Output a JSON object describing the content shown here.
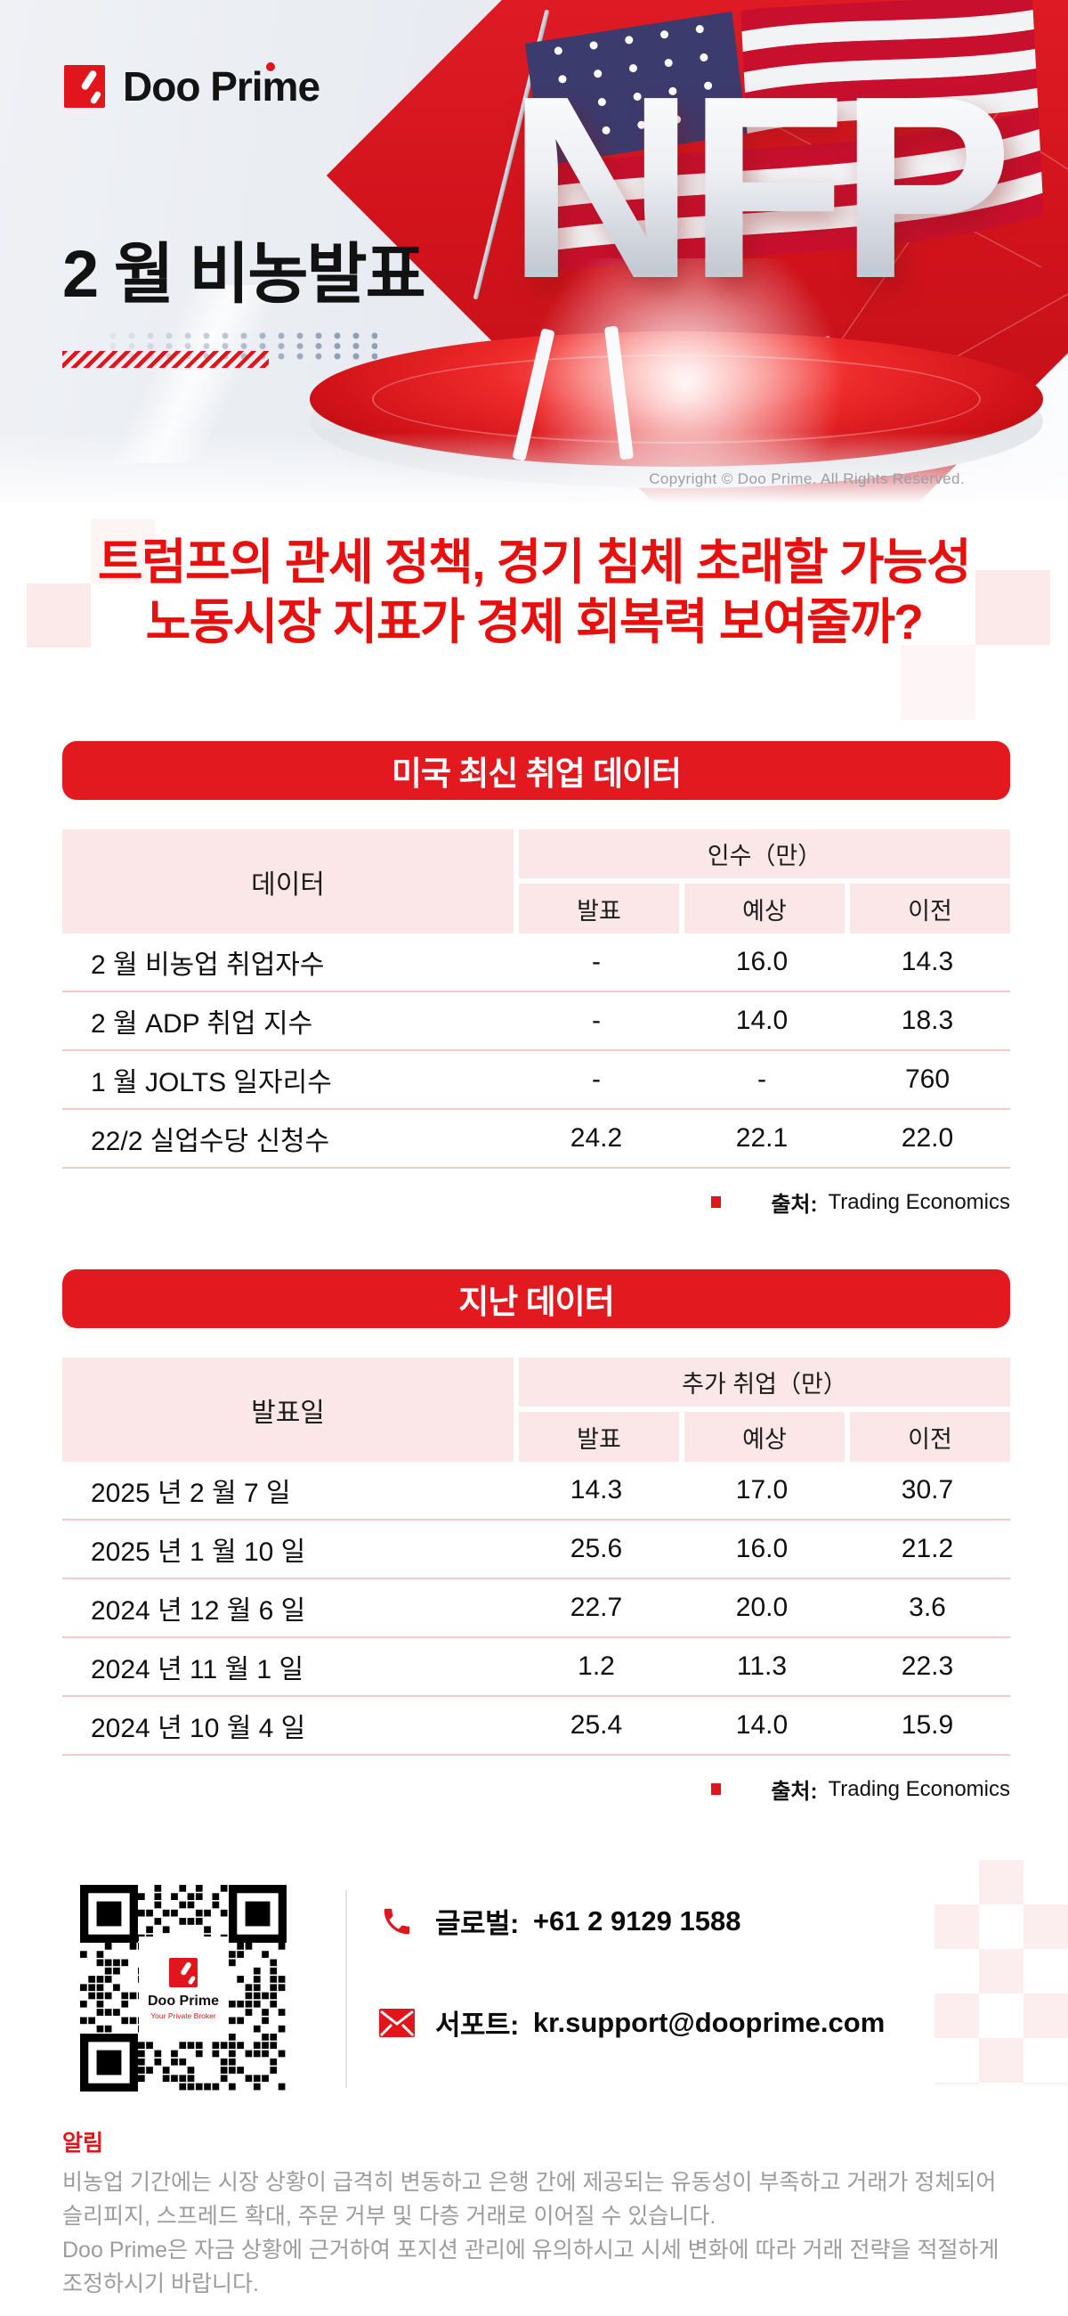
{
  "colors": {
    "brand_red": "#e2151c",
    "headline_red": "#e8100f",
    "banner_red": "#e2191f",
    "table_header_pink": "#fbe7e8",
    "row_divider_pink": "#f5c9c9",
    "footer_gray": "#9c9c9c",
    "copyright_gray": "#9aa0a6",
    "dots_gray": "#8fa0b4",
    "flag_navy": "#3c3b6e",
    "flag_red": "#c8102e"
  },
  "header": {
    "brand_name": "Doo Prime",
    "title": "2 월 비농발표",
    "hero_word": "NFP",
    "copyright": "Copyright © Doo Prime. All Rights Reserved."
  },
  "headline": {
    "line1": "트럼프의 관세 정책, 경기 침체 초래할 가능성",
    "line2": "노동시장 지표가 경제 회복력 보여줄까?"
  },
  "latest_table": {
    "banner": "미국 최신 취업 데이터",
    "row_header": "데이터",
    "group_header": "인수（만）",
    "columns": [
      "발표",
      "예상",
      "이전"
    ],
    "rows": [
      {
        "label": "2 월 비농업 취업자수",
        "announced": "-",
        "forecast": "16.0",
        "previous": "14.3"
      },
      {
        "label": "2 월 ADP 취업 지수",
        "announced": "-",
        "forecast": "14.0",
        "previous": "18.3"
      },
      {
        "label": "1 월 JOLTS 일자리수",
        "announced": "-",
        "forecast": "-",
        "previous": "760"
      },
      {
        "label": "22/2 실업수당 신청수",
        "announced": "24.2",
        "forecast": "22.1",
        "previous": "22.0"
      }
    ],
    "source_label": "출처:",
    "source_value": "Trading Economics"
  },
  "history_table": {
    "banner": "지난 데이터",
    "row_header": "발표일",
    "group_header": "추가 취업（만）",
    "columns": [
      "발표",
      "예상",
      "이전"
    ],
    "rows": [
      {
        "label": "2025 년 2 월 7 일",
        "announced": "14.3",
        "forecast": "17.0",
        "previous": "30.7"
      },
      {
        "label": "2025 년 1 월 10 일",
        "announced": "25.6",
        "forecast": "16.0",
        "previous": "21.2"
      },
      {
        "label": "2024 년 12 월 6 일",
        "announced": "22.7",
        "forecast": "20.0",
        "previous": "3.6"
      },
      {
        "label": "2024 년 11 월 1 일",
        "announced": "1.2",
        "forecast": "11.3",
        "previous": "22.3"
      },
      {
        "label": "2024 년 10 월 4 일",
        "announced": "25.4",
        "forecast": "14.0",
        "previous": "15.9"
      }
    ],
    "source_label": "출처:",
    "source_value": "Trading Economics"
  },
  "contact": {
    "phone_label": "글로벌:",
    "phone_value": "+61 2 9129 1588",
    "email_label": "서포트:",
    "email_value": "kr.support@dooprime.com",
    "qr_brand": "Doo Prime",
    "qr_tagline": "Your Private Broker"
  },
  "notice": {
    "title": "알림",
    "para1": "비농업 기간에는 시장 상황이 급격히 변동하고 은행 간에 제공되는 유동성이 부족하고 거래가 정체되어 슬리피지, 스프레드 확대, 주문 거부 및 다층 거래로 이어질 수 있습니다.",
    "para2": "Doo Prime은 자금 상황에 근거하여 포지션 관리에 유의하시고 시세 변화에 따라 거래 전략을 적절하게 조정하시기 바랍니다."
  }
}
